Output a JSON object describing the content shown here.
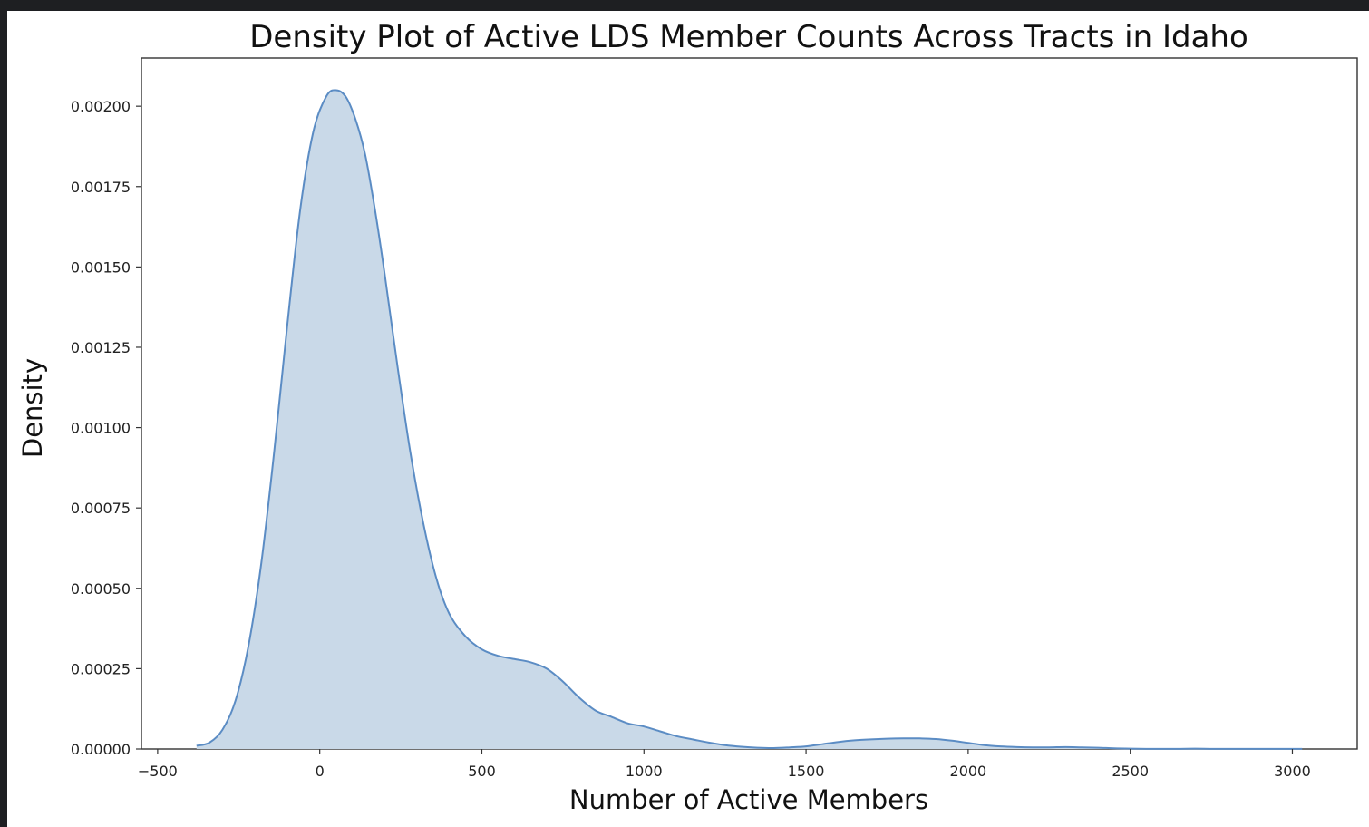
{
  "chart_data": {
    "type": "area",
    "title": "Density Plot of Active LDS Member Counts Across Tracts in Idaho",
    "xlabel": "Number of Active Members",
    "ylabel": "Density",
    "xlim": [
      -550,
      3200
    ],
    "ylim": [
      0,
      0.00215
    ],
    "xticks": [
      -500,
      0,
      500,
      1000,
      1500,
      2000,
      2500,
      3000
    ],
    "xtick_labels": [
      "−500",
      "0",
      "500",
      "1000",
      "1500",
      "2000",
      "2500",
      "3000"
    ],
    "yticks": [
      0,
      0.00025,
      0.0005,
      0.00075,
      0.001,
      0.00125,
      0.0015,
      0.00175,
      0.002
    ],
    "ytick_labels": [
      "0.00000",
      "0.00025",
      "0.00050",
      "0.00075",
      "0.00100",
      "0.00125",
      "0.00150",
      "0.00175",
      "0.00200"
    ],
    "grid": false,
    "legend": "none",
    "fill_color": "#c9d9e8",
    "line_color": "#5b8cc4",
    "series": [
      {
        "x": [
          -380,
          -340,
          -300,
          -260,
          -220,
          -180,
          -140,
          -100,
          -60,
          -20,
          20,
          50,
          80,
          110,
          140,
          170,
          200,
          240,
          280,
          320,
          360,
          400,
          450,
          500,
          550,
          600,
          650,
          700,
          750,
          800,
          850,
          900,
          950,
          1000,
          1050,
          1100,
          1150,
          1200,
          1250,
          1300,
          1350,
          1400,
          1450,
          1500,
          1550,
          1600,
          1650,
          1700,
          1750,
          1800,
          1850,
          1900,
          1950,
          2000,
          2050,
          2100,
          2150,
          2200,
          2250,
          2300,
          2350,
          2400,
          2450,
          2500,
          2550,
          2600,
          2650,
          2700,
          2750,
          2800,
          2850,
          2900,
          2950,
          3000,
          3030
        ],
        "y": [
          1e-05,
          2e-05,
          6e-05,
          0.00015,
          0.00032,
          0.00058,
          0.00093,
          0.00132,
          0.00168,
          0.00192,
          0.00203,
          0.00205,
          0.00203,
          0.00196,
          0.00185,
          0.00168,
          0.00148,
          0.00119,
          0.00092,
          0.0007,
          0.00053,
          0.00042,
          0.00035,
          0.00031,
          0.00029,
          0.00028,
          0.00027,
          0.00025,
          0.00021,
          0.00016,
          0.00012,
          0.0001,
          8e-05,
          7e-05,
          5.5e-05,
          4e-05,
          3e-05,
          2e-05,
          1.2e-05,
          7e-06,
          4e-06,
          3e-06,
          5e-06,
          8e-06,
          1.5e-05,
          2.2e-05,
          2.7e-05,
          3e-05,
          3.2e-05,
          3.3e-05,
          3.3e-05,
          3.1e-05,
          2.6e-05,
          1.9e-05,
          1.2e-05,
          8e-06,
          6e-06,
          5e-06,
          5e-06,
          6e-06,
          5e-06,
          4e-06,
          2e-06,
          1e-06,
          5e-07,
          5e-07,
          5e-07,
          1e-06,
          5e-07,
          5e-07,
          5e-07,
          5e-07,
          5e-07,
          5e-07,
          5e-07
        ]
      }
    ]
  }
}
